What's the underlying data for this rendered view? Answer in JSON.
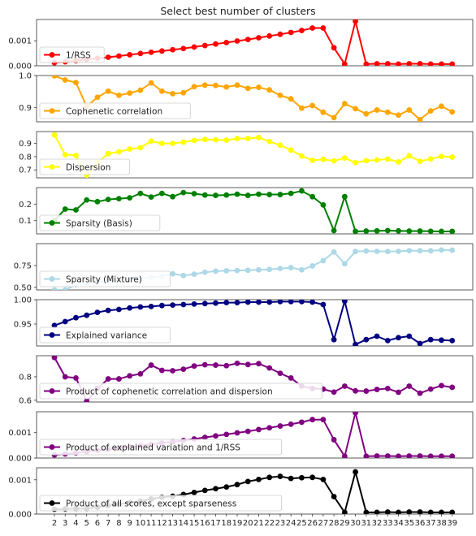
{
  "chart_data": {
    "type": "line",
    "title": "Select best number of clusters",
    "x": [
      2,
      3,
      4,
      5,
      6,
      7,
      8,
      9,
      10,
      11,
      12,
      13,
      14,
      15,
      16,
      17,
      18,
      19,
      20,
      21,
      22,
      23,
      24,
      25,
      26,
      27,
      28,
      29,
      30,
      31,
      32,
      33,
      34,
      35,
      36,
      37,
      38,
      39
    ],
    "x_tick_labels": [
      "2",
      "3",
      "4",
      "5",
      "6",
      "7",
      "8",
      "9",
      "10",
      "11",
      "12",
      "13",
      "14",
      "15",
      "16",
      "17",
      "18",
      "19",
      "20",
      "21",
      "22",
      "23",
      "24",
      "25",
      "26",
      "27",
      "28",
      "29",
      "30",
      "31",
      "32",
      "33",
      "34",
      "35",
      "36",
      "37",
      "38",
      "39"
    ],
    "grid": false,
    "legend_position": "lower-left",
    "subplots": [
      {
        "name": "1/RSS",
        "color": "#ff0000",
        "ylim": [
          0.0,
          0.00185
        ],
        "yticks": [
          0.0,
          0.001
        ],
        "ytick_labels": [
          "0.000",
          "0.001"
        ],
        "values": [
          0.00012,
          0.00016,
          0.0002,
          0.00025,
          0.0003,
          0.00034,
          0.00039,
          0.00044,
          0.00049,
          0.00054,
          0.00059,
          0.00064,
          0.00069,
          0.00075,
          0.00081,
          0.00087,
          0.00093,
          0.00099,
          0.00105,
          0.00112,
          0.00119,
          0.00126,
          0.00133,
          0.00141,
          0.00151,
          0.00151,
          0.00072,
          7e-05,
          0.00178,
          7e-05,
          8e-05,
          8e-05,
          7e-05,
          8e-05,
          8e-05,
          7e-05,
          7e-05,
          7e-05
        ]
      },
      {
        "name": "Cophenetic correlation",
        "color": "#ffa500",
        "ylim": [
          0.855,
          1.0
        ],
        "yticks": [
          0.9,
          1.0
        ],
        "ytick_labels": [
          "0.9",
          "1.0"
        ],
        "values": [
          0.999,
          0.986,
          0.978,
          0.903,
          0.932,
          0.951,
          0.938,
          0.945,
          0.954,
          0.977,
          0.951,
          0.943,
          0.946,
          0.965,
          0.97,
          0.969,
          0.964,
          0.97,
          0.96,
          0.963,
          0.955,
          0.938,
          0.927,
          0.898,
          0.906,
          0.885,
          0.868,
          0.912,
          0.896,
          0.88,
          0.892,
          0.885,
          0.876,
          0.892,
          0.862,
          0.889,
          0.904,
          0.886
        ]
      },
      {
        "name": "Dispersion",
        "color": "#ffff00",
        "ylim": [
          0.64,
          0.99
        ],
        "yticks": [
          0.7,
          0.8,
          0.9
        ],
        "ytick_labels": [
          "0.7",
          "0.8",
          "0.9"
        ],
        "values": [
          0.965,
          0.815,
          0.81,
          0.66,
          0.755,
          0.823,
          0.837,
          0.858,
          0.868,
          0.918,
          0.9,
          0.9,
          0.91,
          0.923,
          0.93,
          0.928,
          0.925,
          0.937,
          0.938,
          0.945,
          0.915,
          0.887,
          0.85,
          0.805,
          0.773,
          0.78,
          0.768,
          0.79,
          0.755,
          0.77,
          0.775,
          0.782,
          0.76,
          0.807,
          0.765,
          0.783,
          0.802,
          0.797
        ]
      },
      {
        "name": "Sparsity (Basis)",
        "color": "#008000",
        "ylim": [
          0.02,
          0.3
        ],
        "yticks": [
          0.1,
          0.2
        ],
        "ytick_labels": [
          "0.1",
          "0.2"
        ],
        "values": [
          0.1,
          0.17,
          0.165,
          0.225,
          0.215,
          0.228,
          0.233,
          0.238,
          0.265,
          0.243,
          0.265,
          0.245,
          0.27,
          0.263,
          0.255,
          0.253,
          0.255,
          0.26,
          0.253,
          0.26,
          0.258,
          0.258,
          0.265,
          0.28,
          0.245,
          0.195,
          0.04,
          0.245,
          0.035,
          0.037,
          0.038,
          0.04,
          0.038,
          0.037,
          0.037,
          0.036,
          0.035,
          0.035
        ]
      },
      {
        "name": "Sparsity (Mixture)",
        "color": "#add8e6",
        "ylim": [
          0.47,
          1.0
        ],
        "yticks": [
          0.5,
          0.75
        ],
        "ytick_labels": [
          "0.50",
          "0.75"
        ],
        "values": [
          0.47,
          0.47,
          0.53,
          0.55,
          0.56,
          0.57,
          0.58,
          0.59,
          0.6,
          0.615,
          0.625,
          0.655,
          0.635,
          0.65,
          0.672,
          0.685,
          0.69,
          0.692,
          0.695,
          0.7,
          0.705,
          0.715,
          0.725,
          0.7,
          0.745,
          0.805,
          0.905,
          0.77,
          0.91,
          0.915,
          0.912,
          0.91,
          0.912,
          0.92,
          0.918,
          0.918,
          0.927,
          0.925
        ]
      },
      {
        "name": "Explained variance",
        "color": "#000080",
        "ylim": [
          0.905,
          1.0
        ],
        "yticks": [
          0.95,
          1.0
        ],
        "ytick_labels": [
          "0.95",
          "1.00"
        ],
        "values": [
          0.947,
          0.955,
          0.963,
          0.968,
          0.974,
          0.978,
          0.98,
          0.983,
          0.985,
          0.986,
          0.988,
          0.989,
          0.99,
          0.991,
          0.992,
          0.993,
          0.994,
          0.994,
          0.995,
          0.995,
          0.995,
          0.996,
          0.996,
          0.996,
          0.995,
          0.99,
          0.918,
          0.997,
          0.908,
          0.918,
          0.925,
          0.916,
          0.922,
          0.925,
          0.91,
          0.918,
          0.917,
          0.916
        ]
      },
      {
        "name": "Product of cophenetic correlation and dispersion",
        "color": "#800080",
        "ylim": [
          0.585,
          0.98
        ],
        "yticks": [
          0.6,
          0.8
        ],
        "ytick_labels": [
          "0.6",
          "0.8"
        ],
        "values": [
          0.965,
          0.8,
          0.79,
          0.59,
          0.7,
          0.782,
          0.782,
          0.808,
          0.825,
          0.9,
          0.855,
          0.852,
          0.865,
          0.892,
          0.903,
          0.9,
          0.895,
          0.915,
          0.905,
          0.912,
          0.875,
          0.83,
          0.79,
          0.72,
          0.7,
          0.695,
          0.67,
          0.72,
          0.68,
          0.678,
          0.692,
          0.7,
          0.668,
          0.72,
          0.66,
          0.695,
          0.725,
          0.71
        ]
      },
      {
        "name": "Product of explained variation and 1/RSS",
        "color": "#800080",
        "ylim": [
          0.0,
          0.00182
        ],
        "yticks": [
          0.0,
          0.001
        ],
        "ytick_labels": [
          "0.000",
          "0.001"
        ],
        "values": [
          0.00012,
          0.00016,
          0.0002,
          0.00025,
          0.0003,
          0.00034,
          0.00039,
          0.00044,
          0.00049,
          0.00054,
          0.00059,
          0.00064,
          0.00069,
          0.00075,
          0.00081,
          0.00087,
          0.00093,
          0.00099,
          0.00105,
          0.00112,
          0.00119,
          0.00126,
          0.00133,
          0.00141,
          0.00151,
          0.00151,
          0.00072,
          7e-05,
          0.00178,
          7e-05,
          8e-05,
          8e-05,
          7e-05,
          8e-05,
          8e-05,
          7e-05,
          7e-05,
          7e-05
        ]
      },
      {
        "name": "Product of all scores, except sparseness",
        "color": "#000000",
        "ylim": [
          0.0,
          0.00135
        ],
        "yticks": [
          0.0,
          0.001
        ],
        "ytick_labels": [
          "0.000",
          "0.001"
        ],
        "values": [
          0.00014,
          0.00015,
          0.00016,
          0.00016,
          0.0002,
          0.00025,
          0.00029,
          0.00033,
          0.00038,
          0.00044,
          0.00049,
          0.00052,
          0.00057,
          0.00063,
          0.00069,
          0.00074,
          0.00079,
          0.00086,
          0.00095,
          0.00101,
          0.00107,
          0.0011,
          0.00104,
          0.00106,
          0.00107,
          0.00101,
          0.00051,
          5e-05,
          0.00123,
          5e-05,
          5e-05,
          6e-05,
          5e-05,
          6e-05,
          6e-05,
          5e-05,
          5e-05,
          5e-05
        ]
      }
    ]
  }
}
